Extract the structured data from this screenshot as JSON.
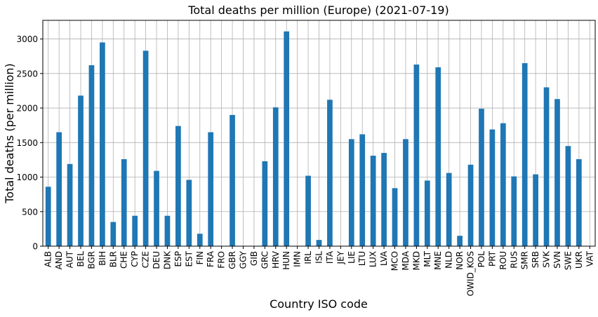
{
  "chart_data": {
    "type": "bar",
    "title": "Total deaths per million (Europe) (2021-07-19)",
    "xlabel": "Country ISO code",
    "ylabel": "Total deaths (per million)",
    "ylim": [
      0,
      3270
    ],
    "yticks": [
      0,
      500,
      1000,
      1500,
      2000,
      2500,
      3000
    ],
    "grid": true,
    "bar_color": "#1f77b4",
    "categories": [
      "ALB",
      "AND",
      "AUT",
      "BEL",
      "BGR",
      "BIH",
      "BLR",
      "CHE",
      "CYP",
      "CZE",
      "DEU",
      "DNK",
      "ESP",
      "EST",
      "FIN",
      "FRA",
      "FRO",
      "GBR",
      "GGY",
      "GIB",
      "GRC",
      "HRV",
      "HUN",
      "IMN",
      "IRL",
      "ISL",
      "ITA",
      "JEY",
      "LIE",
      "LTU",
      "LUX",
      "LVA",
      "MCO",
      "MDA",
      "MKD",
      "MLT",
      "MNE",
      "NLD",
      "NOR",
      "OWID_KOS",
      "POL",
      "PRT",
      "ROU",
      "RUS",
      "SMR",
      "SRB",
      "SVK",
      "SVN",
      "SWE",
      "UKR",
      "VAT"
    ],
    "values": [
      860,
      1650,
      1190,
      2180,
      2620,
      2950,
      350,
      1260,
      440,
      2830,
      1090,
      440,
      1740,
      960,
      180,
      1650,
      0,
      1900,
      0,
      0,
      1230,
      2010,
      3110,
      0,
      1020,
      90,
      2120,
      0,
      1550,
      1620,
      1310,
      1350,
      840,
      1550,
      2630,
      950,
      2590,
      1060,
      150,
      1180,
      1990,
      1690,
      1780,
      1010,
      2650,
      1040,
      2300,
      2130,
      1450,
      1260,
      0
    ]
  }
}
